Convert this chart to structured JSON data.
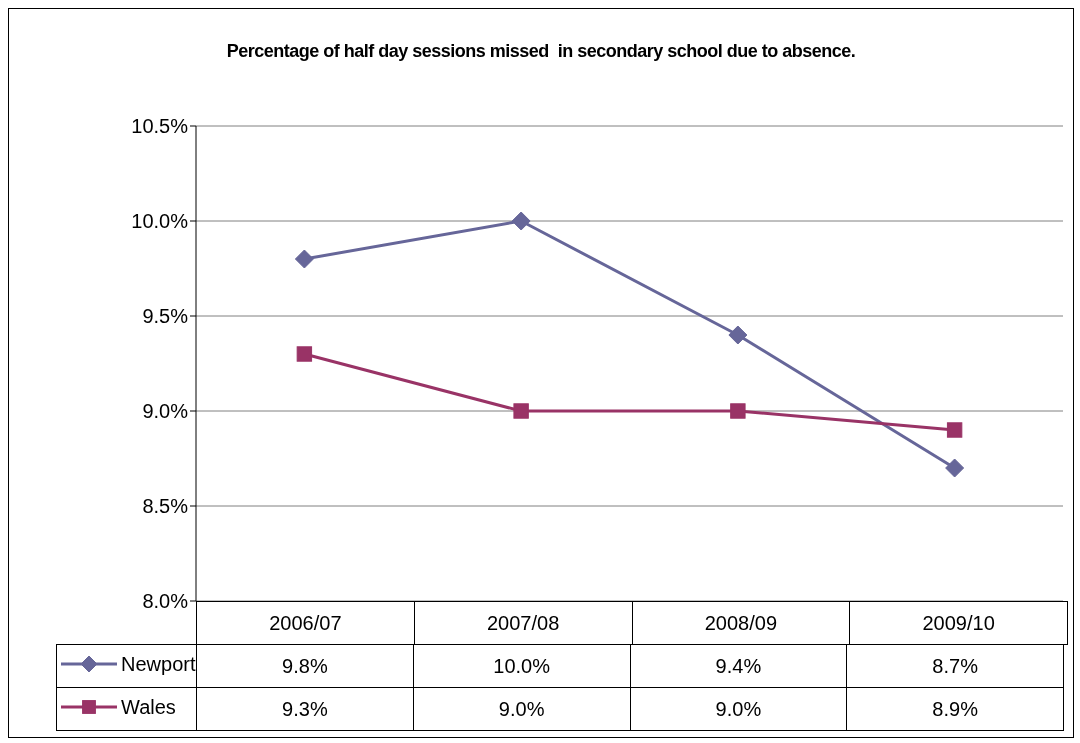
{
  "chart_data": {
    "type": "line",
    "title": "Percentage of half day sessions missed  in secondary school due to absence.",
    "categories": [
      "2006/07",
      "2007/08",
      "2008/09",
      "2009/10"
    ],
    "series": [
      {
        "name": "Newport",
        "color": "#666699",
        "marker": "diamond",
        "values": [
          9.8,
          10.0,
          9.4,
          8.7
        ],
        "value_labels": [
          "9.8%",
          "10.0%",
          "9.4%",
          "8.7%"
        ]
      },
      {
        "name": "Wales",
        "color": "#993366",
        "marker": "square",
        "values": [
          9.3,
          9.0,
          9.0,
          8.9
        ],
        "value_labels": [
          "9.3%",
          "9.0%",
          "9.0%",
          "8.9%"
        ]
      }
    ],
    "ylim": [
      8.0,
      10.5
    ],
    "yticks": [
      {
        "value": 8.0,
        "label": "8.0%"
      },
      {
        "value": 8.5,
        "label": "8.5%"
      },
      {
        "value": 9.0,
        "label": "9.0%"
      },
      {
        "value": 9.5,
        "label": "9.5%"
      },
      {
        "value": 10.0,
        "label": "10.0%"
      },
      {
        "value": 10.5,
        "label": "10.5%"
      }
    ],
    "grid": "y",
    "legend": "bottom left",
    "line_style": "solid"
  }
}
